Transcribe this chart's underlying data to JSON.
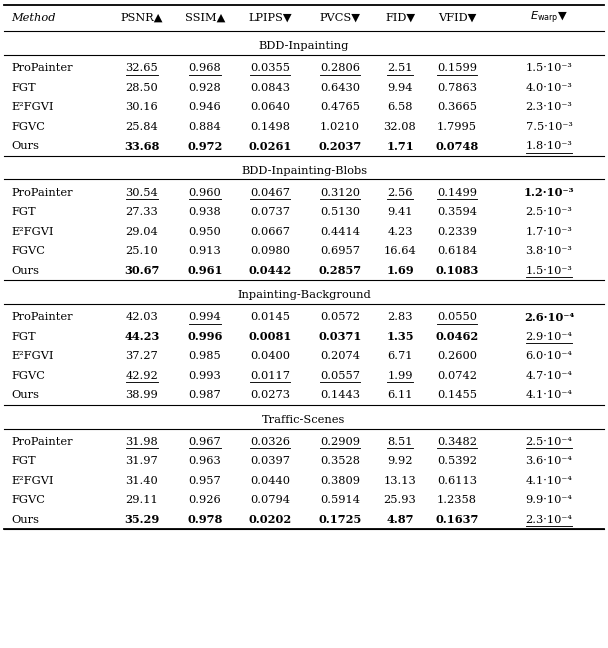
{
  "headers": [
    "Method",
    "PSNR▲",
    "SSIM▲",
    "LPIPS▼",
    "PVCS▼",
    "FID▼",
    "VFID▼",
    "E_warp_special"
  ],
  "sections": [
    {
      "title": "BDD-Inpainting",
      "rows": [
        [
          "ProPainter",
          "32.65",
          "0.968",
          "0.0355",
          "0.2806",
          "2.51",
          "0.1599",
          "1.5·10⁻³"
        ],
        [
          "FGT",
          "28.50",
          "0.928",
          "0.0843",
          "0.6430",
          "9.94",
          "0.7863",
          "4.0·10⁻³"
        ],
        [
          "E²FGVI",
          "30.16",
          "0.946",
          "0.0640",
          "0.4765",
          "6.58",
          "0.3665",
          "2.3·10⁻³"
        ],
        [
          "FGVC",
          "25.84",
          "0.884",
          "0.1498",
          "1.0210",
          "32.08",
          "1.7995",
          "7.5·10⁻³"
        ],
        [
          "Ours",
          "33.68",
          "0.972",
          "0.0261",
          "0.2037",
          "1.71",
          "0.0748",
          "1.8·10⁻³"
        ]
      ],
      "bold": [
        [
          false,
          false,
          false,
          false,
          false,
          false,
          false,
          false
        ],
        [
          false,
          false,
          false,
          false,
          false,
          false,
          false,
          false
        ],
        [
          false,
          false,
          false,
          false,
          false,
          false,
          false,
          false
        ],
        [
          false,
          false,
          false,
          false,
          false,
          false,
          false,
          false
        ],
        [
          false,
          true,
          true,
          true,
          true,
          true,
          true,
          false
        ]
      ],
      "underline": [
        [
          false,
          true,
          true,
          true,
          true,
          true,
          true,
          false
        ],
        [
          false,
          false,
          false,
          false,
          false,
          false,
          false,
          false
        ],
        [
          false,
          false,
          false,
          false,
          false,
          false,
          false,
          false
        ],
        [
          false,
          false,
          false,
          false,
          false,
          false,
          false,
          false
        ],
        [
          false,
          false,
          false,
          false,
          false,
          false,
          false,
          true
        ]
      ]
    },
    {
      "title": "BDD-Inpainting-Blobs",
      "rows": [
        [
          "ProPainter",
          "30.54",
          "0.960",
          "0.0467",
          "0.3120",
          "2.56",
          "0.1499",
          "1.2·10⁻³"
        ],
        [
          "FGT",
          "27.33",
          "0.938",
          "0.0737",
          "0.5130",
          "9.41",
          "0.3594",
          "2.5·10⁻³"
        ],
        [
          "E²FGVI",
          "29.04",
          "0.950",
          "0.0667",
          "0.4414",
          "4.23",
          "0.2339",
          "1.7·10⁻³"
        ],
        [
          "FGVC",
          "25.10",
          "0.913",
          "0.0980",
          "0.6957",
          "16.64",
          "0.6184",
          "3.8·10⁻³"
        ],
        [
          "Ours",
          "30.67",
          "0.961",
          "0.0442",
          "0.2857",
          "1.69",
          "0.1083",
          "1.5·10⁻³"
        ]
      ],
      "bold": [
        [
          false,
          false,
          false,
          false,
          false,
          false,
          false,
          true
        ],
        [
          false,
          false,
          false,
          false,
          false,
          false,
          false,
          false
        ],
        [
          false,
          false,
          false,
          false,
          false,
          false,
          false,
          false
        ],
        [
          false,
          false,
          false,
          false,
          false,
          false,
          false,
          false
        ],
        [
          false,
          true,
          true,
          true,
          true,
          true,
          true,
          false
        ]
      ],
      "underline": [
        [
          false,
          true,
          true,
          true,
          true,
          true,
          true,
          false
        ],
        [
          false,
          false,
          false,
          false,
          false,
          false,
          false,
          false
        ],
        [
          false,
          false,
          false,
          false,
          false,
          false,
          false,
          false
        ],
        [
          false,
          false,
          false,
          false,
          false,
          false,
          false,
          false
        ],
        [
          false,
          false,
          false,
          false,
          false,
          false,
          false,
          true
        ]
      ]
    },
    {
      "title": "Inpainting-Background",
      "rows": [
        [
          "ProPainter",
          "42.03",
          "0.994",
          "0.0145",
          "0.0572",
          "2.83",
          "0.0550",
          "2.6·10⁻⁴"
        ],
        [
          "FGT",
          "44.23",
          "0.996",
          "0.0081",
          "0.0371",
          "1.35",
          "0.0462",
          "2.9·10⁻⁴"
        ],
        [
          "E²FGVI",
          "37.27",
          "0.985",
          "0.0400",
          "0.2074",
          "6.71",
          "0.2600",
          "6.0·10⁻⁴"
        ],
        [
          "FGVC",
          "42.92",
          "0.993",
          "0.0117",
          "0.0557",
          "1.99",
          "0.0742",
          "4.7·10⁻⁴"
        ],
        [
          "Ours",
          "38.99",
          "0.987",
          "0.0273",
          "0.1443",
          "6.11",
          "0.1455",
          "4.1·10⁻⁴"
        ]
      ],
      "bold": [
        [
          false,
          false,
          false,
          false,
          false,
          false,
          false,
          true
        ],
        [
          false,
          true,
          true,
          true,
          true,
          true,
          true,
          false
        ],
        [
          false,
          false,
          false,
          false,
          false,
          false,
          false,
          false
        ],
        [
          false,
          false,
          false,
          false,
          false,
          false,
          false,
          false
        ],
        [
          false,
          false,
          false,
          false,
          false,
          false,
          false,
          false
        ]
      ],
      "underline": [
        [
          false,
          false,
          true,
          false,
          false,
          false,
          true,
          false
        ],
        [
          false,
          false,
          false,
          false,
          false,
          false,
          false,
          true
        ],
        [
          false,
          false,
          false,
          false,
          false,
          false,
          false,
          false
        ],
        [
          false,
          true,
          false,
          true,
          true,
          true,
          false,
          false
        ],
        [
          false,
          false,
          false,
          false,
          false,
          false,
          false,
          false
        ]
      ]
    },
    {
      "title": "Traffic-Scenes",
      "rows": [
        [
          "ProPainter",
          "31.98",
          "0.967",
          "0.0326",
          "0.2909",
          "8.51",
          "0.3482",
          "2.5·10⁻⁴"
        ],
        [
          "FGT",
          "31.97",
          "0.963",
          "0.0397",
          "0.3528",
          "9.92",
          "0.5392",
          "3.6·10⁻⁴"
        ],
        [
          "E²FGVI",
          "31.40",
          "0.957",
          "0.0440",
          "0.3809",
          "13.13",
          "0.6113",
          "4.1·10⁻⁴"
        ],
        [
          "FGVC",
          "29.11",
          "0.926",
          "0.0794",
          "0.5914",
          "25.93",
          "1.2358",
          "9.9·10⁻⁴"
        ],
        [
          "Ours",
          "35.29",
          "0.978",
          "0.0202",
          "0.1725",
          "4.87",
          "0.1637",
          "2.3·10⁻⁴"
        ]
      ],
      "bold": [
        [
          false,
          false,
          false,
          false,
          false,
          false,
          false,
          false
        ],
        [
          false,
          false,
          false,
          false,
          false,
          false,
          false,
          false
        ],
        [
          false,
          false,
          false,
          false,
          false,
          false,
          false,
          false
        ],
        [
          false,
          false,
          false,
          false,
          false,
          false,
          false,
          false
        ],
        [
          false,
          true,
          true,
          true,
          true,
          true,
          true,
          false
        ]
      ],
      "underline": [
        [
          false,
          true,
          true,
          true,
          true,
          true,
          true,
          true
        ],
        [
          false,
          false,
          false,
          false,
          false,
          false,
          false,
          false
        ],
        [
          false,
          false,
          false,
          false,
          false,
          false,
          false,
          false
        ],
        [
          false,
          false,
          false,
          false,
          false,
          false,
          false,
          false
        ],
        [
          false,
          false,
          false,
          false,
          false,
          false,
          false,
          true
        ]
      ]
    }
  ],
  "figsize": [
    6.08,
    6.48
  ],
  "dpi": 100
}
